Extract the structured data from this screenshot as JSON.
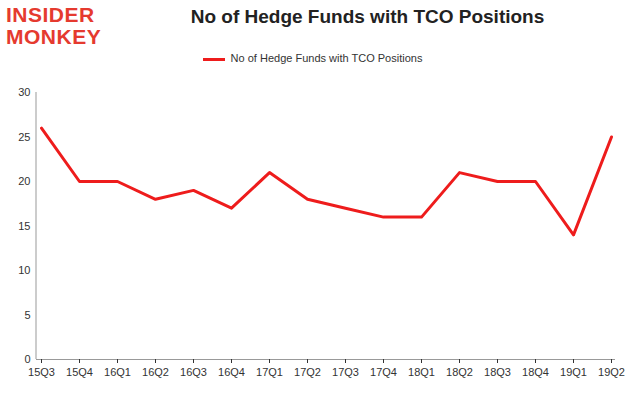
{
  "chart_data": {
    "type": "line",
    "title": "No of Hedge Funds with TCO Positions",
    "annotations": [
      "INSIDER",
      "MONKEY"
    ],
    "categories": [
      "15Q3",
      "15Q4",
      "16Q1",
      "16Q2",
      "16Q3",
      "16Q4",
      "17Q1",
      "17Q2",
      "17Q3",
      "17Q4",
      "18Q1",
      "18Q2",
      "18Q3",
      "18Q4",
      "19Q1",
      "19Q2"
    ],
    "series": [
      {
        "name": "No of Hedge Funds with TCO Positions",
        "color": "#ee1c1c",
        "values": [
          26,
          20,
          20,
          18,
          19,
          17,
          21,
          18,
          17,
          16,
          16,
          21,
          20,
          20,
          14,
          25
        ]
      }
    ],
    "ylim": [
      0,
      30
    ],
    "yticks": [
      0,
      5,
      10,
      15,
      20,
      25,
      30
    ],
    "grid": false,
    "legend": "top"
  }
}
